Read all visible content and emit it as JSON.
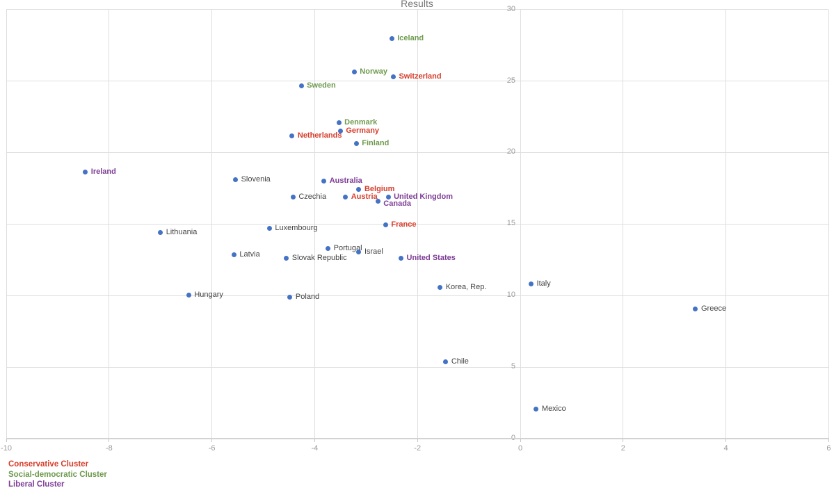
{
  "title": "Results",
  "colors": {
    "point": "#4472c4",
    "cluster_conservative": "#d63c2a",
    "cluster_social_democratic": "#6e9a4d",
    "cluster_liberal": "#7d3c96",
    "label_default": "#434343",
    "gridline": "#dedede",
    "axis_line": "#d2d2d2",
    "tick_label": "#9b9b9b",
    "title_text": "#757575"
  },
  "legend": {
    "items": [
      {
        "key": "conservative",
        "label": "Conservative Cluster"
      },
      {
        "key": "social-democratic",
        "label": "Social-democratic Cluster"
      },
      {
        "key": "liberal",
        "label": "Liberal Cluster"
      }
    ]
  },
  "chart_data": {
    "type": "scatter",
    "title": "Results",
    "xlabel": "",
    "ylabel": "",
    "xlim": [
      -10,
      6
    ],
    "ylim": [
      0,
      30
    ],
    "x_ticks": [
      -10,
      -8,
      -6,
      -4,
      -2,
      0,
      2,
      4,
      6
    ],
    "y_ticks": [
      0,
      5,
      10,
      15,
      20,
      25,
      30
    ],
    "grid": true,
    "legend_position": "bottom-left",
    "series_color": "#4472c4",
    "points": [
      {
        "label": "Iceland",
        "x": -2.5,
        "y": 27.94,
        "cluster": "social-democratic"
      },
      {
        "label": "Norway",
        "x": -3.23,
        "y": 25.61,
        "cluster": "social-democratic"
      },
      {
        "label": "Switzerland",
        "x": -2.47,
        "y": 25.3,
        "cluster": "conservative"
      },
      {
        "label": "Sweden",
        "x": -4.26,
        "y": 24.67,
        "cluster": "social-democratic"
      },
      {
        "label": "Denmark",
        "x": -3.53,
        "y": 22.09,
        "cluster": "social-democratic"
      },
      {
        "label": "Germany",
        "x": -3.5,
        "y": 21.51,
        "cluster": "conservative"
      },
      {
        "label": "Netherlands",
        "x": -4.44,
        "y": 21.18,
        "cluster": "conservative"
      },
      {
        "label": "Finland",
        "x": -3.19,
        "y": 20.62,
        "cluster": "social-democratic"
      },
      {
        "label": "Ireland",
        "x": -8.46,
        "y": 18.64,
        "cluster": "liberal"
      },
      {
        "label": "Slovenia",
        "x": -5.54,
        "y": 18.11,
        "cluster": "none"
      },
      {
        "label": "Australia",
        "x": -3.82,
        "y": 18.0,
        "cluster": "liberal"
      },
      {
        "label": "Belgium",
        "x": -3.14,
        "y": 17.4,
        "cluster": "conservative"
      },
      {
        "label": "Czechia",
        "x": -4.42,
        "y": 16.88,
        "cluster": "none"
      },
      {
        "label": "Austria",
        "x": -3.4,
        "y": 16.88,
        "cluster": "conservative"
      },
      {
        "label": "United Kingdom",
        "x": -2.57,
        "y": 16.88,
        "cluster": "liberal"
      },
      {
        "label": "Canada",
        "x": -2.77,
        "y": 16.6,
        "cluster": "liberal",
        "label_dy": 4
      },
      {
        "label": "France",
        "x": -2.62,
        "y": 14.95,
        "cluster": "conservative"
      },
      {
        "label": "Luxembourg",
        "x": -4.88,
        "y": 14.69,
        "cluster": "none"
      },
      {
        "label": "Lithuania",
        "x": -7.0,
        "y": 14.4,
        "cluster": "none"
      },
      {
        "label": "Portugal",
        "x": -3.74,
        "y": 13.28,
        "cluster": "none"
      },
      {
        "label": "Israel",
        "x": -3.14,
        "y": 13.04,
        "cluster": "none"
      },
      {
        "label": "Latvia",
        "x": -5.57,
        "y": 12.83,
        "cluster": "none"
      },
      {
        "label": "Slovak Republic",
        "x": -4.55,
        "y": 12.63,
        "cluster": "none"
      },
      {
        "label": "United States",
        "x": -2.32,
        "y": 12.62,
        "cluster": "liberal"
      },
      {
        "label": "Italy",
        "x": 0.21,
        "y": 10.82,
        "cluster": "none"
      },
      {
        "label": "Korea, Rep.",
        "x": -1.56,
        "y": 10.58,
        "cluster": "none"
      },
      {
        "label": "Hungary",
        "x": -6.45,
        "y": 10.01,
        "cluster": "none"
      },
      {
        "label": "Poland",
        "x": -4.48,
        "y": 9.9,
        "cluster": "none"
      },
      {
        "label": "Greece",
        "x": 3.41,
        "y": 9.07,
        "cluster": "none"
      },
      {
        "label": "Chile",
        "x": -1.45,
        "y": 5.39,
        "cluster": "none"
      },
      {
        "label": "Mexico",
        "x": 0.31,
        "y": 2.07,
        "cluster": "none"
      }
    ]
  }
}
